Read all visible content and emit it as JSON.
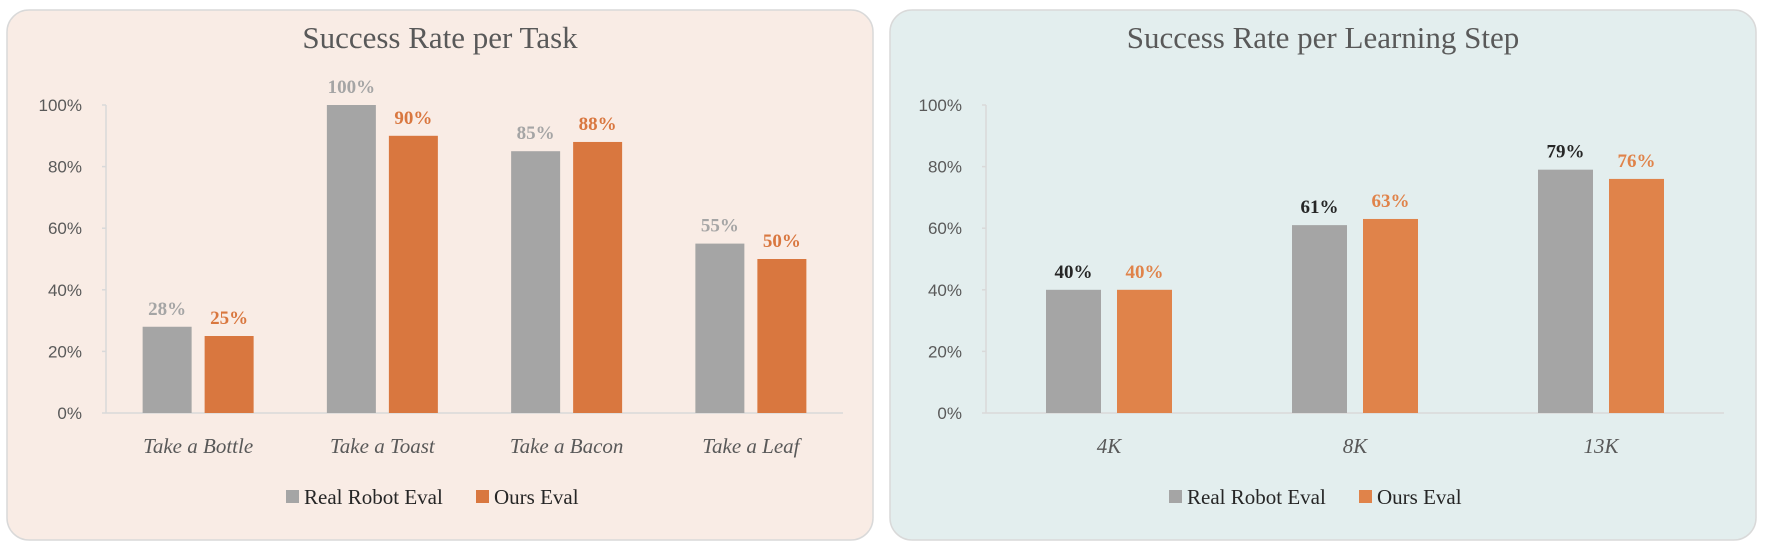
{
  "chart_data": [
    {
      "type": "bar",
      "title": "Success Rate per Task",
      "categories": [
        "Take a Bottle",
        "Take a Toast",
        "Take a Bacon",
        "Take a Leaf"
      ],
      "series": [
        {
          "name": "Real Robot Eval",
          "values": [
            28,
            100,
            85,
            55
          ],
          "color": "#a5a5a5",
          "label_color": "#a5a5a5"
        },
        {
          "name": "Ours Eval",
          "values": [
            25,
            90,
            88,
            50
          ],
          "color": "#d9773f",
          "label_color": "#d9773f"
        }
      ],
      "ylim": [
        0,
        100
      ],
      "yticks": [
        "0%",
        "20%",
        "40%",
        "60%",
        "80%",
        "100%"
      ],
      "value_format": "percent",
      "grid": false,
      "legend": "bottom",
      "background": "#f9ece5"
    },
    {
      "type": "bar",
      "title": "Success Rate per Learning Step",
      "categories": [
        "4K",
        "8K",
        "13K"
      ],
      "series": [
        {
          "name": "Real Robot Eval",
          "values": [
            40,
            61,
            79
          ],
          "color": "#a5a5a5",
          "label_color": "#262626"
        },
        {
          "name": "Ours Eval",
          "values": [
            40,
            63,
            76
          ],
          "color": "#e0834a",
          "label_color": "#e0834a"
        }
      ],
      "ylim": [
        0,
        100
      ],
      "yticks": [
        "0%",
        "20%",
        "40%",
        "60%",
        "80%",
        "100%"
      ],
      "value_format": "percent",
      "grid": false,
      "legend": "bottom",
      "background": "#e3eeee"
    }
  ]
}
